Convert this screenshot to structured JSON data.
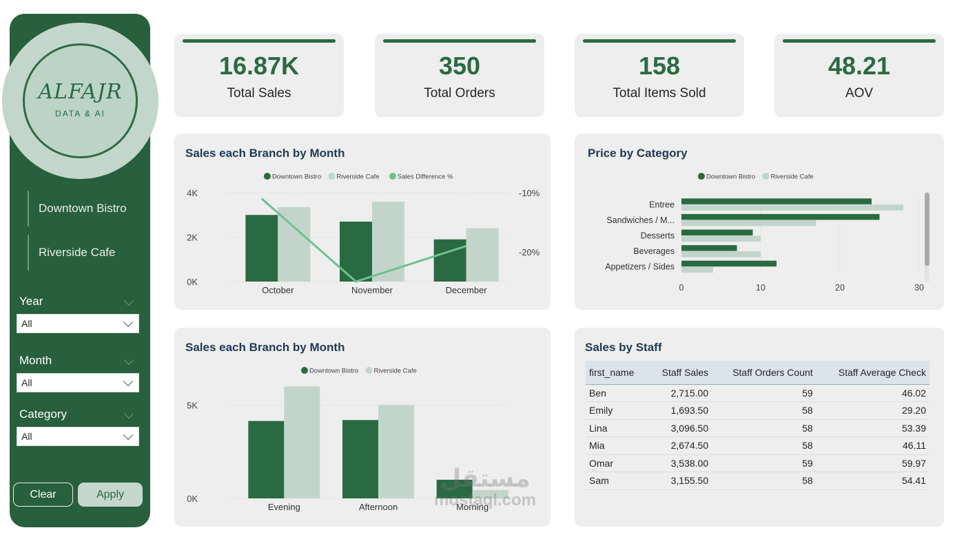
{
  "sidebar": {
    "logo": {
      "word": "ALFAJR",
      "sub": "DATA & AI"
    },
    "branches": [
      "Downtown Bistro",
      "Riverside Cafe"
    ],
    "slicers": [
      {
        "label": "Year",
        "value": "All"
      },
      {
        "label": "Month",
        "value": "All"
      },
      {
        "label": "Category",
        "value": "All"
      }
    ],
    "clear_label": "Clear",
    "apply_label": "Apply"
  },
  "kpis": [
    {
      "value": "16.87K",
      "label": "Total Sales"
    },
    {
      "value": "350",
      "label": "Total Orders"
    },
    {
      "value": "158",
      "label": "Total Items Sold"
    },
    {
      "value": "48.21",
      "label": "AOV"
    }
  ],
  "colors": {
    "downtown": "#2a6a43",
    "riverside": "#c3d5cb",
    "difference": "#6fc18e",
    "accent": "#285f3c"
  },
  "panels": {
    "month_title": "Sales each Branch by Month",
    "category_title": "Price by Category",
    "time_title": "Sales each Branch by Month",
    "staff_title": "Sales by Staff"
  },
  "chart_data": [
    {
      "type": "bar",
      "title": "Sales each Branch by Month",
      "categories": [
        "October",
        "November",
        "December"
      ],
      "series": [
        {
          "name": "Downtown Bistro",
          "values": [
            3000,
            2700,
            1900
          ]
        },
        {
          "name": "Riverside Cafe",
          "values": [
            3350,
            3600,
            2400
          ]
        },
        {
          "name": "Sales Difference %",
          "type": "line",
          "axis": "right",
          "values": [
            -11,
            -25,
            -19
          ]
        }
      ],
      "ylim": [
        0,
        4000
      ],
      "yticks": [
        "0K",
        "2K",
        "4K"
      ],
      "y2lim": [
        -25,
        -10
      ],
      "y2ticks": [
        "-10%",
        "-20%"
      ],
      "y2tick_values": [
        -10,
        -20
      ],
      "legend": "top-center"
    },
    {
      "type": "bar",
      "orientation": "horizontal",
      "title": "Price by Category",
      "categories": [
        "Entree",
        "Sandwiches / M...",
        "Desserts",
        "Beverages",
        "Appetizers / Sides"
      ],
      "series": [
        {
          "name": "Downtown Bistro",
          "values": [
            24,
            25,
            9,
            7,
            12
          ]
        },
        {
          "name": "Riverside Cafe",
          "values": [
            28,
            17,
            10,
            10,
            4
          ]
        }
      ],
      "xlim": [
        0,
        30
      ],
      "xticks": [
        "0",
        "10",
        "20",
        "30"
      ],
      "legend": "top-center"
    },
    {
      "type": "bar",
      "title": "Sales each Branch by Month",
      "categories": [
        "Evening",
        "Afternoon",
        "Morning"
      ],
      "series": [
        {
          "name": "Downtown Bistro",
          "values": [
            4150,
            4200,
            1000
          ]
        },
        {
          "name": "Riverside Cafe",
          "values": [
            6000,
            5000,
            450
          ]
        }
      ],
      "ylim": [
        0,
        6200
      ],
      "yticks": [
        "0K",
        "5K"
      ],
      "ytick_values": [
        0,
        5000
      ],
      "legend": "top-center"
    }
  ],
  "staff_table": {
    "headers": [
      "first_name",
      "Staff Sales",
      "Staff Orders Count",
      "Staff Average Check"
    ],
    "rows": [
      [
        "Ben",
        "2,715.00",
        "59",
        "46.02"
      ],
      [
        "Emily",
        "1,693.50",
        "58",
        "29.20"
      ],
      [
        "Lina",
        "3,096.50",
        "58",
        "53.39"
      ],
      [
        "Mia",
        "2,674.50",
        "58",
        "46.11"
      ],
      [
        "Omar",
        "3,538.00",
        "59",
        "59.97"
      ],
      [
        "Sam",
        "3,155.50",
        "58",
        "54.41"
      ]
    ]
  },
  "watermark": {
    "arabic": "مستقل",
    "latin": "mostaql.com"
  }
}
